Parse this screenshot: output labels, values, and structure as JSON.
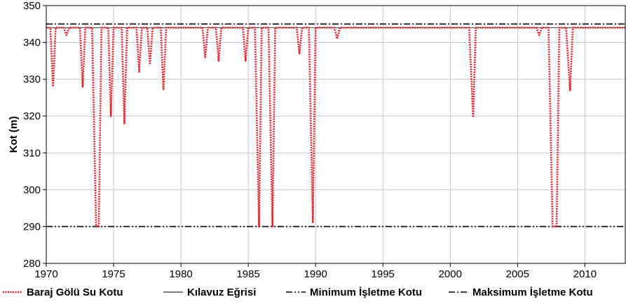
{
  "chart_data": {
    "type": "line",
    "ylabel": "Kot (m)",
    "xlabel": "",
    "xlim": [
      1970,
      2013
    ],
    "ylim": [
      280,
      350
    ],
    "x_ticks": [
      "1970",
      "1975",
      "1980",
      "1985",
      "1990",
      "1995",
      "2000",
      "2005",
      "2010"
    ],
    "y_ticks": [
      "280",
      "290",
      "300",
      "310",
      "320",
      "330",
      "340",
      "350"
    ],
    "grid": true,
    "legend_position": "bottom",
    "series": [
      {
        "name": "Baraj Gölü Su Kotu",
        "color": "#e8202a",
        "style": "dotted",
        "base_level": 344,
        "drops": [
          [
            1970.3,
            344
          ],
          [
            1970.5,
            328
          ],
          [
            1970.7,
            344
          ],
          [
            1971.3,
            344
          ],
          [
            1971.5,
            342
          ],
          [
            1971.7,
            344
          ],
          [
            1972.5,
            344
          ],
          [
            1972.7,
            328
          ],
          [
            1972.9,
            344
          ],
          [
            1973.4,
            344
          ],
          [
            1973.7,
            290
          ],
          [
            1973.9,
            290
          ],
          [
            1974.1,
            344
          ],
          [
            1974.6,
            344
          ],
          [
            1974.8,
            320
          ],
          [
            1975.0,
            344
          ],
          [
            1975.6,
            344
          ],
          [
            1975.8,
            318
          ],
          [
            1976.0,
            344
          ],
          [
            1976.7,
            344
          ],
          [
            1976.9,
            332
          ],
          [
            1977.1,
            344
          ],
          [
            1977.5,
            344
          ],
          [
            1977.7,
            334
          ],
          [
            1977.9,
            344
          ],
          [
            1978.5,
            344
          ],
          [
            1978.7,
            327
          ],
          [
            1978.9,
            344
          ],
          [
            1981.6,
            344
          ],
          [
            1981.8,
            336
          ],
          [
            1982.0,
            344
          ],
          [
            1982.6,
            344
          ],
          [
            1982.8,
            335
          ],
          [
            1983.0,
            344
          ],
          [
            1984.6,
            344
          ],
          [
            1984.8,
            335
          ],
          [
            1985.0,
            344
          ],
          [
            1985.5,
            344
          ],
          [
            1985.8,
            290
          ],
          [
            1986.0,
            344
          ],
          [
            1986.5,
            344
          ],
          [
            1986.8,
            290
          ],
          [
            1987.0,
            344
          ],
          [
            1988.6,
            344
          ],
          [
            1988.8,
            337
          ],
          [
            1989.0,
            344
          ],
          [
            1989.5,
            344
          ],
          [
            1989.8,
            291
          ],
          [
            1990.0,
            344
          ],
          [
            1991.4,
            344
          ],
          [
            1991.6,
            341
          ],
          [
            1991.8,
            344
          ],
          [
            2001.4,
            344
          ],
          [
            2001.7,
            320
          ],
          [
            2001.9,
            344
          ],
          [
            2006.4,
            344
          ],
          [
            2006.6,
            342
          ],
          [
            2006.8,
            344
          ],
          [
            2007.3,
            344
          ],
          [
            2007.6,
            290
          ],
          [
            2007.9,
            290
          ],
          [
            2008.1,
            344
          ],
          [
            2008.6,
            344
          ],
          [
            2008.9,
            327
          ],
          [
            2009.1,
            344
          ]
        ]
      },
      {
        "name": "Kılavuz Eğrisi",
        "color": "#555555",
        "style": "solid",
        "level": 344
      },
      {
        "name": "Minimum İşletme Kotu",
        "color": "#000000",
        "style": "dash-dot-dot",
        "level": 290
      },
      {
        "name": "Maksimum İşletme Kotu",
        "color": "#000000",
        "style": "dash-dot",
        "level": 345
      }
    ]
  }
}
